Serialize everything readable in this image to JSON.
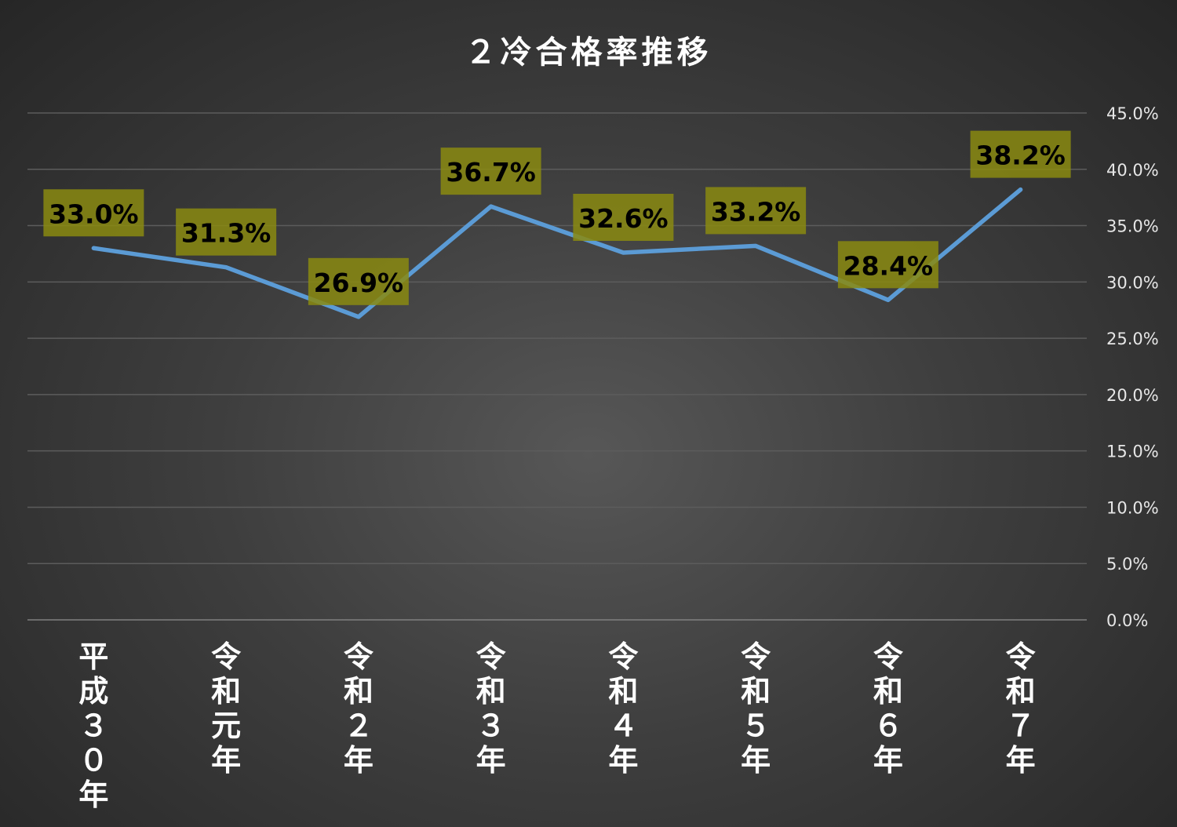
{
  "chart_data": {
    "type": "line",
    "title": "２冷合格率推移",
    "categories": [
      "平成３０年",
      "令和元年",
      "令和２年",
      "令和３年",
      "令和４年",
      "令和５年",
      "令和６年",
      "令和７年"
    ],
    "series": [
      {
        "values": [
          33.0,
          31.3,
          26.9,
          36.7,
          32.6,
          33.2,
          28.4,
          38.2
        ],
        "data_labels": [
          "33.0%",
          "31.3%",
          "26.9%",
          "36.7%",
          "32.6%",
          "33.2%",
          "28.4%",
          "38.2%"
        ],
        "color": "#5b9bd5"
      }
    ],
    "y_axis": {
      "position": "right",
      "ylim": [
        0,
        45
      ],
      "ticks": [
        "0.0%",
        "5.0%",
        "10.0%",
        "15.0%",
        "20.0%",
        "25.0%",
        "30.0%",
        "35.0%",
        "40.0%",
        "45.0%"
      ]
    },
    "grid": true,
    "label_background": "#8a8a10",
    "background": "#3c3c3c"
  }
}
